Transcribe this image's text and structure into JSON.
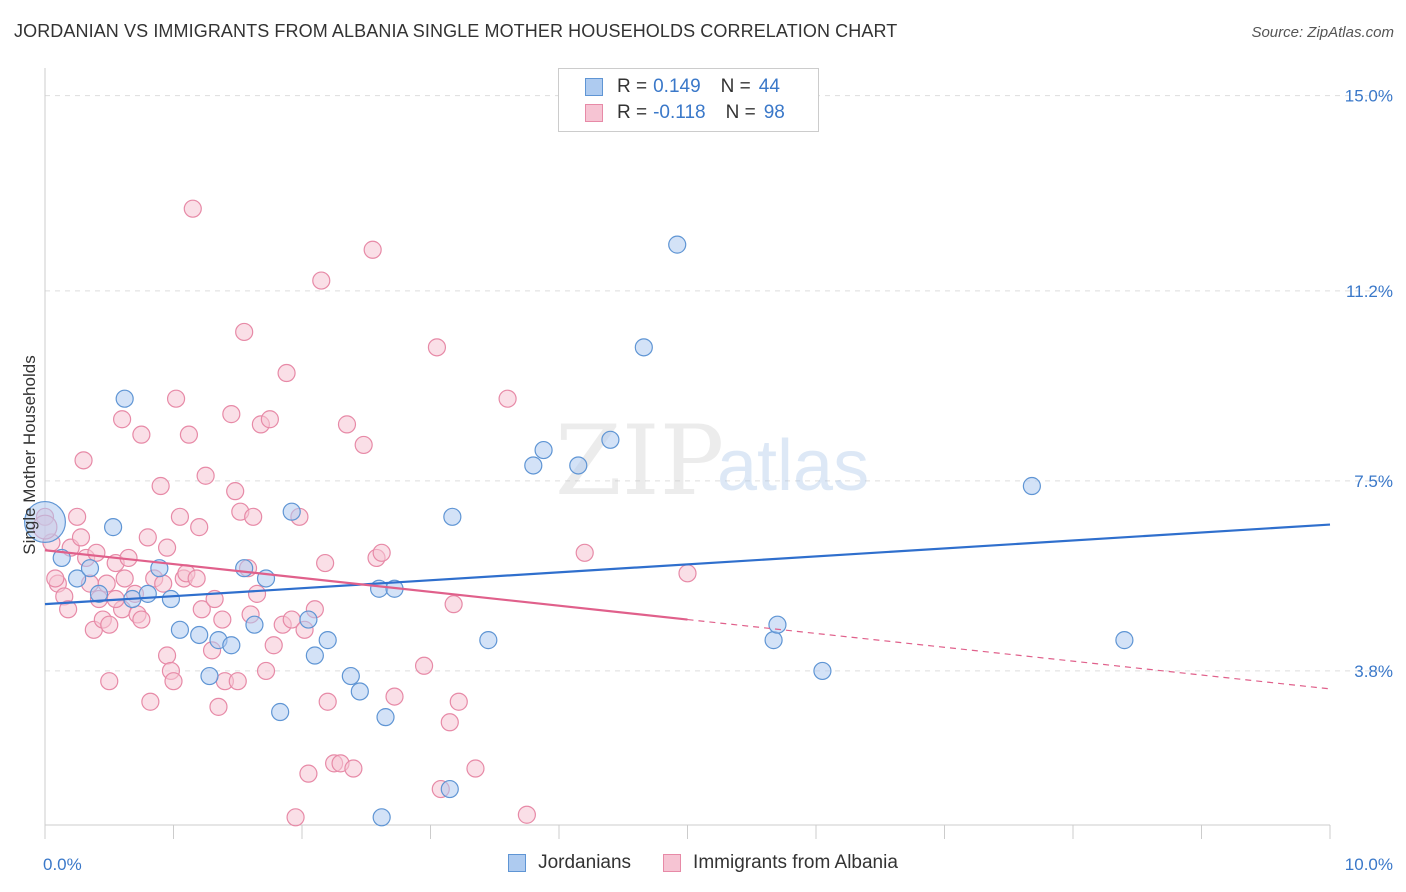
{
  "header": {
    "title": "JORDANIAN VS IMMIGRANTS FROM ALBANIA SINGLE MOTHER HOUSEHOLDS CORRELATION CHART",
    "source": "Source: ZipAtlas.com"
  },
  "watermark": {
    "zip": "ZIP",
    "atlas": "atlas"
  },
  "colors": {
    "blue_fill": "#aecbf0",
    "blue_stroke": "#5f95d4",
    "blue_line": "#2f6fcd",
    "pink_fill": "#f6c4d3",
    "pink_stroke": "#e78aa7",
    "pink_line": "#e0608b",
    "grid": "#dddddd",
    "tick_label": "#3a78c9"
  },
  "legend": {
    "rows": [
      {
        "r_label": "R =",
        "r_value": "0.149",
        "n_label": "N =",
        "n_value": "44",
        "color": "blue"
      },
      {
        "r_label": "R =",
        "r_value": "-0.118",
        "n_label": "N =",
        "n_value": "98",
        "color": "pink"
      }
    ]
  },
  "chart_data": {
    "type": "scatter",
    "title": "JORDANIAN VS IMMIGRANTS FROM ALBANIA SINGLE MOTHER HOUSEHOLDS CORRELATION CHART",
    "xlabel": "",
    "ylabel": "Single Mother Households",
    "xlim": [
      0,
      10
    ],
    "ylim": [
      0.8,
      15.5
    ],
    "x_tick_labels": [
      "0.0%",
      "10.0%"
    ],
    "y_ticks": [
      3.8,
      7.5,
      11.2,
      15.0
    ],
    "y_tick_labels": [
      "3.8%",
      "7.5%",
      "11.2%",
      "15.0%"
    ],
    "grid": true,
    "legend_position": "top-center",
    "series": [
      {
        "name": "Jordanians",
        "color": "blue",
        "trend": {
          "x0": 0,
          "y0": 5.1,
          "x1": 10,
          "y1": 6.65,
          "dashed_from": null
        },
        "points": [
          [
            0.0,
            6.7,
            24
          ],
          [
            0.13,
            6.0,
            10
          ],
          [
            0.25,
            5.6,
            10
          ],
          [
            0.35,
            5.8,
            10
          ],
          [
            0.42,
            5.3,
            10
          ],
          [
            0.53,
            6.6,
            10
          ],
          [
            0.62,
            9.1,
            10
          ],
          [
            0.68,
            5.2,
            10
          ],
          [
            0.8,
            5.3,
            10
          ],
          [
            0.89,
            5.8,
            10
          ],
          [
            0.98,
            5.2,
            10
          ],
          [
            1.05,
            4.6,
            10
          ],
          [
            1.2,
            4.5,
            10
          ],
          [
            1.28,
            3.7,
            10
          ],
          [
            1.35,
            4.4,
            10
          ],
          [
            1.45,
            4.3,
            10
          ],
          [
            1.55,
            5.8,
            10
          ],
          [
            1.63,
            4.7,
            10
          ],
          [
            1.72,
            5.6,
            10
          ],
          [
            1.83,
            3.0,
            10
          ],
          [
            1.92,
            6.9,
            10
          ],
          [
            2.05,
            4.8,
            10
          ],
          [
            2.1,
            4.1,
            10
          ],
          [
            2.2,
            4.4,
            10
          ],
          [
            2.38,
            3.7,
            10
          ],
          [
            2.45,
            3.4,
            10
          ],
          [
            2.6,
            5.4,
            10
          ],
          [
            2.62,
            0.95,
            10
          ],
          [
            2.65,
            2.9,
            10
          ],
          [
            2.72,
            5.4,
            10
          ],
          [
            3.15,
            1.5,
            10
          ],
          [
            3.17,
            6.8,
            10
          ],
          [
            3.45,
            4.4,
            10
          ],
          [
            3.8,
            7.8,
            10
          ],
          [
            3.88,
            8.1,
            10
          ],
          [
            4.15,
            7.8,
            10
          ],
          [
            4.4,
            8.3,
            10
          ],
          [
            4.66,
            10.1,
            10
          ],
          [
            4.92,
            12.1,
            10
          ],
          [
            5.67,
            4.4,
            10
          ],
          [
            5.7,
            4.7,
            10
          ],
          [
            6.05,
            3.8,
            10
          ],
          [
            7.68,
            7.4,
            10
          ],
          [
            8.4,
            4.4,
            10
          ]
        ]
      },
      {
        "name": "Immigrants from Albania",
        "color": "pink",
        "trend": {
          "x0": 0,
          "y0": 6.15,
          "x1": 10,
          "y1": 3.45,
          "dashed_from": 5.0
        },
        "points": [
          [
            0.0,
            6.8,
            10
          ],
          [
            0.05,
            6.3,
            10
          ],
          [
            0.1,
            5.5,
            10
          ],
          [
            0.15,
            5.25,
            10
          ],
          [
            0.18,
            5.0,
            10
          ],
          [
            0.2,
            6.2,
            10
          ],
          [
            0.25,
            6.8,
            10
          ],
          [
            0.28,
            6.4,
            10
          ],
          [
            0.3,
            7.9,
            10
          ],
          [
            0.32,
            6.0,
            10
          ],
          [
            0.35,
            5.5,
            10
          ],
          [
            0.38,
            4.6,
            10
          ],
          [
            0.4,
            6.1,
            10
          ],
          [
            0.42,
            5.2,
            10
          ],
          [
            0.45,
            4.8,
            10
          ],
          [
            0.48,
            5.5,
            10
          ],
          [
            0.5,
            4.7,
            10
          ],
          [
            0.5,
            3.6,
            10
          ],
          [
            0.55,
            5.9,
            10
          ],
          [
            0.6,
            5.0,
            10
          ],
          [
            0.6,
            8.7,
            10
          ],
          [
            0.62,
            5.6,
            10
          ],
          [
            0.65,
            6.0,
            10
          ],
          [
            0.7,
            5.3,
            10
          ],
          [
            0.72,
            4.9,
            10
          ],
          [
            0.75,
            4.8,
            10
          ],
          [
            0.75,
            8.4,
            10
          ],
          [
            0.8,
            6.4,
            10
          ],
          [
            0.82,
            3.2,
            10
          ],
          [
            0.85,
            5.6,
            10
          ],
          [
            0.9,
            7.4,
            10
          ],
          [
            0.92,
            5.5,
            10
          ],
          [
            0.95,
            6.2,
            10
          ],
          [
            0.95,
            4.1,
            10
          ],
          [
            0.98,
            3.8,
            10
          ],
          [
            1.0,
            3.6,
            10
          ],
          [
            1.02,
            9.1,
            10
          ],
          [
            1.05,
            6.8,
            10
          ],
          [
            1.08,
            5.6,
            10
          ],
          [
            1.1,
            5.7,
            10
          ],
          [
            1.12,
            8.4,
            10
          ],
          [
            1.15,
            12.8,
            10
          ],
          [
            1.2,
            6.6,
            10
          ],
          [
            1.22,
            5.0,
            10
          ],
          [
            1.25,
            7.6,
            10
          ],
          [
            1.3,
            4.2,
            10
          ],
          [
            1.32,
            5.2,
            10
          ],
          [
            1.35,
            3.1,
            10
          ],
          [
            1.38,
            4.8,
            10
          ],
          [
            1.4,
            3.6,
            10
          ],
          [
            1.45,
            8.8,
            10
          ],
          [
            1.48,
            7.3,
            10
          ],
          [
            1.5,
            3.6,
            10
          ],
          [
            1.52,
            6.9,
            10
          ],
          [
            1.55,
            10.4,
            10
          ],
          [
            1.58,
            5.8,
            10
          ],
          [
            1.6,
            4.9,
            10
          ],
          [
            1.62,
            6.8,
            10
          ],
          [
            1.65,
            5.3,
            10
          ],
          [
            1.68,
            8.6,
            10
          ],
          [
            1.72,
            3.8,
            10
          ],
          [
            1.75,
            8.7,
            10
          ],
          [
            1.78,
            4.3,
            10
          ],
          [
            1.85,
            4.7,
            10
          ],
          [
            1.88,
            9.6,
            10
          ],
          [
            1.92,
            4.8,
            10
          ],
          [
            1.95,
            0.95,
            10
          ],
          [
            1.98,
            6.8,
            10
          ],
          [
            2.02,
            4.6,
            10
          ],
          [
            2.05,
            1.8,
            10
          ],
          [
            2.1,
            5.0,
            10
          ],
          [
            2.15,
            11.4,
            10
          ],
          [
            2.18,
            5.9,
            10
          ],
          [
            2.2,
            3.2,
            10
          ],
          [
            2.25,
            2.0,
            10
          ],
          [
            2.3,
            2.0,
            10
          ],
          [
            2.35,
            8.6,
            10
          ],
          [
            2.4,
            1.9,
            10
          ],
          [
            2.48,
            8.2,
            10
          ],
          [
            2.55,
            12.0,
            10
          ],
          [
            2.58,
            6.0,
            10
          ],
          [
            2.62,
            6.1,
            10
          ],
          [
            2.72,
            3.3,
            10
          ],
          [
            2.95,
            3.9,
            10
          ],
          [
            3.05,
            10.1,
            10
          ],
          [
            3.08,
            1.5,
            10
          ],
          [
            3.15,
            2.8,
            10
          ],
          [
            3.18,
            5.1,
            10
          ],
          [
            3.22,
            3.2,
            10
          ],
          [
            3.35,
            1.9,
            10
          ],
          [
            3.6,
            9.1,
            10
          ],
          [
            3.75,
            1.0,
            10
          ],
          [
            4.2,
            6.1,
            10
          ],
          [
            5.0,
            5.7,
            10
          ],
          [
            0.0,
            6.6,
            14
          ],
          [
            0.08,
            5.6,
            10
          ],
          [
            0.55,
            5.2,
            10
          ],
          [
            1.18,
            5.6,
            10
          ]
        ]
      }
    ]
  },
  "bottom_legend": {
    "items": [
      {
        "label": "Jordanians",
        "color": "blue"
      },
      {
        "label": "Immigrants from Albania",
        "color": "pink"
      }
    ]
  }
}
